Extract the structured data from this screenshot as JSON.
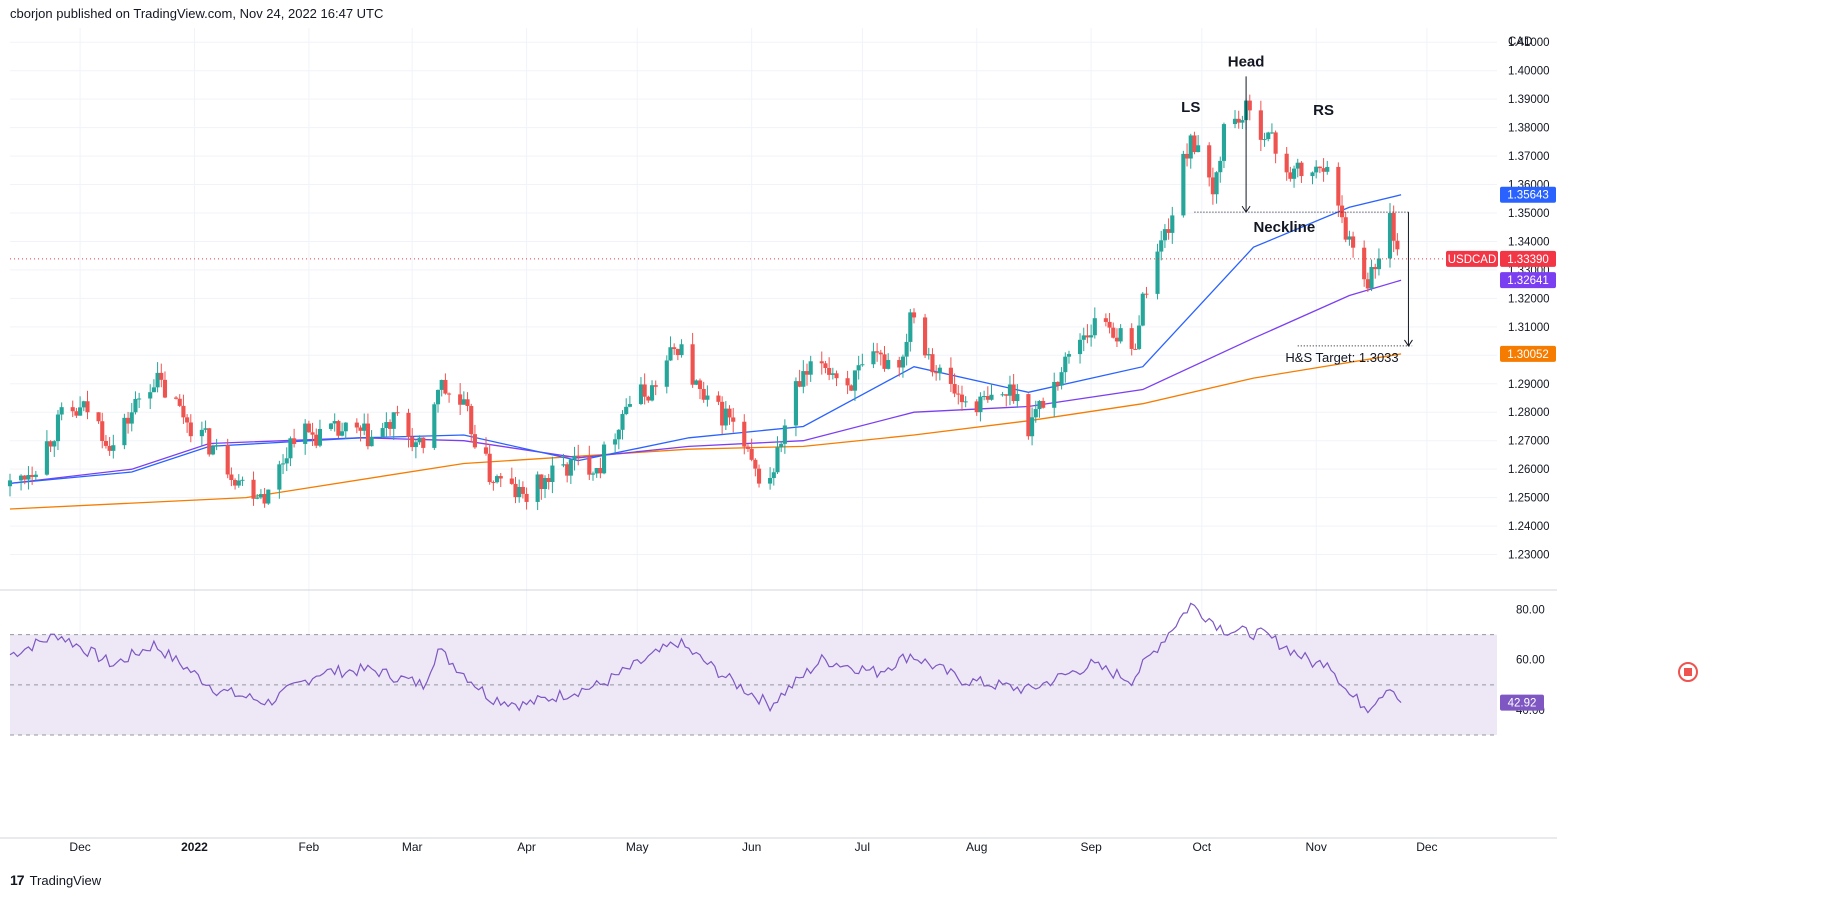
{
  "header": {
    "publisher_line": "cborjon published on TradingView.com, Nov 24, 2022 16:47 UTC"
  },
  "footer": {
    "brand": "TradingView",
    "logo_glyph": "17"
  },
  "colors": {
    "bull": "#26a69a",
    "bear": "#ef5350",
    "sma50": "#2962ff",
    "sma100": "#7b3ff2",
    "sma200": "#f57c00",
    "rsi_line": "#7e57c2",
    "rsi_band": "#ede7f6",
    "last_price": "#f23645",
    "grid": "#f0f3fa"
  },
  "chart_data": {
    "type": "candlestick",
    "symbol": "USDCAD",
    "currency_label": "CAD",
    "ylim": [
      1.22,
      1.415
    ],
    "y_ticks": [
      "1.41000",
      "1.40000",
      "1.39000",
      "1.38000",
      "1.37000",
      "1.36000",
      "1.35000",
      "1.34000",
      "1.33000",
      "1.32000",
      "1.31000",
      "1.30000",
      "1.29000",
      "1.28000",
      "1.27000",
      "1.26000",
      "1.25000",
      "1.24000",
      "1.23000"
    ],
    "x_labels": [
      {
        "label": "Dec",
        "date": "2021-12-01"
      },
      {
        "label": "2022",
        "date": "2022-01-01"
      },
      {
        "label": "Feb",
        "date": "2022-02-01"
      },
      {
        "label": "Mar",
        "date": "2022-03-01"
      },
      {
        "label": "Apr",
        "date": "2022-04-01"
      },
      {
        "label": "May",
        "date": "2022-05-01"
      },
      {
        "label": "Jun",
        "date": "2022-06-01"
      },
      {
        "label": "Jul",
        "date": "2022-07-01"
      },
      {
        "label": "Aug",
        "date": "2022-08-01"
      },
      {
        "label": "Sep",
        "date": "2022-09-01"
      },
      {
        "label": "Oct",
        "date": "2022-10-01"
      },
      {
        "label": "Nov",
        "date": "2022-11-01"
      },
      {
        "label": "Dec",
        "date": "2022-12-01"
      }
    ],
    "x_range": [
      "2021-11-12",
      "2022-12-20"
    ],
    "close_path": [
      [
        "2021-11-12",
        1.254
      ],
      [
        "2021-11-19",
        1.262
      ],
      [
        "2021-11-26",
        1.278
      ],
      [
        "2021-12-03",
        1.281
      ],
      [
        "2021-12-10",
        1.268
      ],
      [
        "2021-12-17",
        1.285
      ],
      [
        "2021-12-21",
        1.292
      ],
      [
        "2021-12-31",
        1.276
      ],
      [
        "2022-01-07",
        1.266
      ],
      [
        "2022-01-14",
        1.255
      ],
      [
        "2022-01-21",
        1.251
      ],
      [
        "2022-01-28",
        1.273
      ],
      [
        "2022-02-04",
        1.272
      ],
      [
        "2022-02-11",
        1.273
      ],
      [
        "2022-02-18",
        1.271
      ],
      [
        "2022-02-25",
        1.277
      ],
      [
        "2022-03-04",
        1.265
      ],
      [
        "2022-03-08",
        1.29
      ],
      [
        "2022-03-15",
        1.281
      ],
      [
        "2022-03-22",
        1.258
      ],
      [
        "2022-03-31",
        1.25
      ],
      [
        "2022-04-07",
        1.257
      ],
      [
        "2022-04-14",
        1.262
      ],
      [
        "2022-04-21",
        1.262
      ],
      [
        "2022-04-28",
        1.283
      ],
      [
        "2022-05-05",
        1.288
      ],
      [
        "2022-05-12",
        1.304
      ],
      [
        "2022-05-19",
        1.283
      ],
      [
        "2022-05-26",
        1.278
      ],
      [
        "2022-06-02",
        1.258
      ],
      [
        "2022-06-06",
        1.256
      ],
      [
        "2022-06-13",
        1.288
      ],
      [
        "2022-06-20",
        1.298
      ],
      [
        "2022-06-27",
        1.29
      ],
      [
        "2022-07-05",
        1.298
      ],
      [
        "2022-07-12",
        1.299
      ],
      [
        "2022-07-14",
        1.317
      ],
      [
        "2022-07-21",
        1.295
      ],
      [
        "2022-07-28",
        1.284
      ],
      [
        "2022-08-04",
        1.283
      ],
      [
        "2022-08-11",
        1.288
      ],
      [
        "2022-08-15",
        1.276
      ],
      [
        "2022-08-22",
        1.29
      ],
      [
        "2022-08-29",
        1.307
      ],
      [
        "2022-09-05",
        1.313
      ],
      [
        "2022-09-12",
        1.3
      ],
      [
        "2022-09-16",
        1.325
      ],
      [
        "2022-09-23",
        1.35
      ],
      [
        "2022-09-28",
        1.378
      ],
      [
        "2022-10-04",
        1.355
      ],
      [
        "2022-10-07",
        1.38
      ],
      [
        "2022-10-13",
        1.385
      ],
      [
        "2022-10-18",
        1.379
      ],
      [
        "2022-10-25",
        1.364
      ],
      [
        "2022-11-01",
        1.364
      ],
      [
        "2022-11-04",
        1.37
      ],
      [
        "2022-11-07",
        1.35
      ],
      [
        "2022-11-10",
        1.341
      ],
      [
        "2022-11-15",
        1.327
      ],
      [
        "2022-11-18",
        1.333
      ],
      [
        "2022-11-21",
        1.348
      ],
      [
        "2022-11-24",
        1.3339
      ]
    ],
    "sma50": [
      [
        "2021-11-12",
        1.255
      ],
      [
        "2021-12-15",
        1.259
      ],
      [
        "2022-01-05",
        1.268
      ],
      [
        "2022-02-15",
        1.271
      ],
      [
        "2022-03-15",
        1.272
      ],
      [
        "2022-04-15",
        1.263
      ],
      [
        "2022-05-15",
        1.271
      ],
      [
        "2022-06-15",
        1.275
      ],
      [
        "2022-07-15",
        1.296
      ],
      [
        "2022-08-15",
        1.287
      ],
      [
        "2022-09-15",
        1.296
      ],
      [
        "2022-10-15",
        1.338
      ],
      [
        "2022-11-10",
        1.352
      ],
      [
        "2022-11-24",
        1.3564
      ]
    ],
    "sma100": [
      [
        "2021-11-12",
        1.255
      ],
      [
        "2021-12-15",
        1.26
      ],
      [
        "2022-01-05",
        1.269
      ],
      [
        "2022-02-15",
        1.271
      ],
      [
        "2022-03-15",
        1.27
      ],
      [
        "2022-04-15",
        1.264
      ],
      [
        "2022-05-15",
        1.268
      ],
      [
        "2022-06-15",
        1.27
      ],
      [
        "2022-07-15",
        1.28
      ],
      [
        "2022-08-15",
        1.282
      ],
      [
        "2022-09-15",
        1.288
      ],
      [
        "2022-10-15",
        1.306
      ],
      [
        "2022-11-10",
        1.321
      ],
      [
        "2022-11-24",
        1.3264
      ]
    ],
    "sma200": [
      [
        "2021-11-12",
        1.246
      ],
      [
        "2022-01-15",
        1.25
      ],
      [
        "2022-03-15",
        1.262
      ],
      [
        "2022-05-15",
        1.267
      ],
      [
        "2022-06-15",
        1.268
      ],
      [
        "2022-07-15",
        1.272
      ],
      [
        "2022-08-15",
        1.277
      ],
      [
        "2022-09-15",
        1.283
      ],
      [
        "2022-10-15",
        1.292
      ],
      [
        "2022-11-24",
        1.3005
      ]
    ],
    "rsi": {
      "ylim": [
        30,
        85
      ],
      "ticks": [
        "80.00",
        "60.00"
      ],
      "band": [
        30,
        70
      ],
      "last_label": "42.92",
      "hidden_tick": "40.00",
      "path": [
        [
          "2021-11-12",
          62
        ],
        [
          "2021-11-25",
          70
        ],
        [
          "2021-12-10",
          58
        ],
        [
          "2021-12-21",
          66
        ],
        [
          "2022-01-07",
          48
        ],
        [
          "2022-01-21",
          43
        ],
        [
          "2022-02-04",
          55
        ],
        [
          "2022-02-18",
          56
        ],
        [
          "2022-03-04",
          50
        ],
        [
          "2022-03-08",
          64
        ],
        [
          "2022-03-22",
          45
        ],
        [
          "2022-03-31",
          42
        ],
        [
          "2022-04-21",
          50
        ],
        [
          "2022-05-12",
          67
        ],
        [
          "2022-05-26",
          52
        ],
        [
          "2022-06-06",
          42
        ],
        [
          "2022-06-20",
          60
        ],
        [
          "2022-07-05",
          55
        ],
        [
          "2022-07-14",
          62
        ],
        [
          "2022-07-28",
          52
        ],
        [
          "2022-08-15",
          48
        ],
        [
          "2022-09-01",
          58
        ],
        [
          "2022-09-12",
          52
        ],
        [
          "2022-09-28",
          82
        ],
        [
          "2022-10-07",
          72
        ],
        [
          "2022-10-18",
          70
        ],
        [
          "2022-11-01",
          58
        ],
        [
          "2022-11-04",
          60
        ],
        [
          "2022-11-10",
          46
        ],
        [
          "2022-11-15",
          41
        ],
        [
          "2022-11-21",
          50
        ],
        [
          "2022-11-24",
          42.92
        ]
      ]
    },
    "levels": {
      "last_price": {
        "label": "USDCAD",
        "value": 1.3339,
        "text": "1.33390"
      },
      "sma50_label": {
        "value": 1.35643,
        "text": "1.35643"
      },
      "sma100_label": {
        "value": 1.32641,
        "text": "1.32641"
      },
      "sma200_label": {
        "value": 1.30052,
        "text": "1.30052"
      }
    },
    "annotations": {
      "ls": {
        "text": "LS",
        "date": "2022-09-28",
        "value": 1.382
      },
      "head": {
        "text": "Head",
        "date": "2022-10-13",
        "value": 1.398
      },
      "rs": {
        "text": "RS",
        "date": "2022-11-03",
        "value": 1.381
      },
      "neckline": {
        "text": "Neckline",
        "value": 1.3503,
        "from": "2022-09-29",
        "to": "2022-11-26"
      },
      "target": {
        "text": "H&S Target: 1.3033",
        "value": 1.3033,
        "from": "2022-10-27",
        "to": "2022-11-27"
      },
      "head_arrow": {
        "date": "2022-10-13",
        "from": 1.398,
        "to": 1.3503
      },
      "target_arrow": {
        "date": "2022-11-26",
        "from": 1.3503,
        "to": 1.3033
      }
    }
  }
}
